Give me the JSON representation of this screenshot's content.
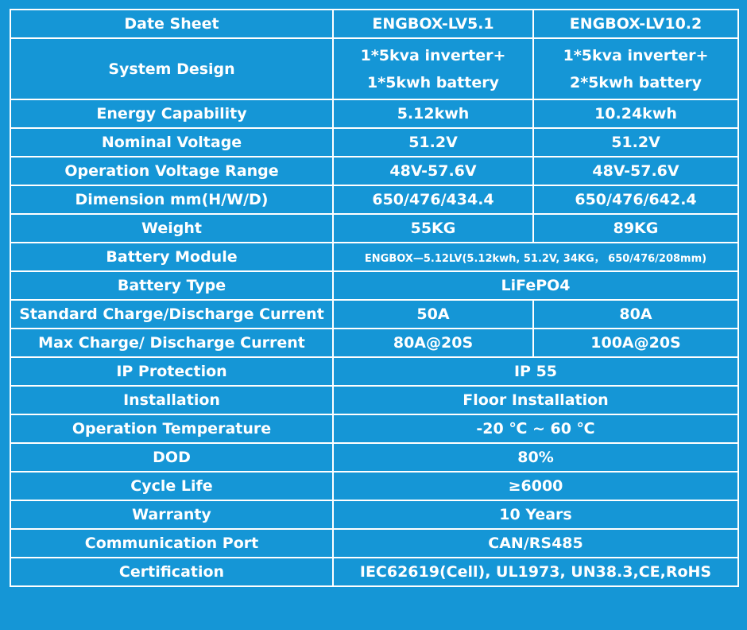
{
  "header": [
    "Date Sheet",
    "ENGBOX-LV5.1",
    "ENGBOX-LV10.2"
  ],
  "rows": [
    {
      "label": "System Design",
      "values": [
        [
          "1*5kva inverter+",
          "1*5kwh battery"
        ],
        [
          "1*5kva inverter+",
          "2*5kwh battery"
        ]
      ]
    },
    {
      "label": "Energy Capability",
      "values": [
        "5.12kwh",
        "10.24kwh"
      ]
    },
    {
      "label": "Nominal Voltage",
      "values": [
        "51.2V",
        "51.2V"
      ]
    },
    {
      "label": "Operation Voltage Range",
      "values": [
        "48V-57.6V",
        "48V-57.6V"
      ]
    },
    {
      "label": "Dimension mm(H/W/D)",
      "values": [
        "650/476/434.4",
        "650/476/642.4"
      ]
    },
    {
      "label": "Weight",
      "values": [
        "55KG",
        "89KG"
      ]
    },
    {
      "label": "Battery Module",
      "values": [
        "ENGBOX—5.12LV(5.12kwh, 51.2V, 34KG， 650/476/208mm)"
      ]
    },
    {
      "label": "Battery Type",
      "values": [
        "LiFePO4"
      ]
    },
    {
      "label": "Standard Charge/Discharge Current",
      "values": [
        "50A",
        "80A"
      ]
    },
    {
      "label": "Max Charge/ Discharge Current",
      "values": [
        "80A@20S",
        "100A@20S"
      ]
    },
    {
      "label": "IP Protection",
      "values": [
        "IP 55"
      ]
    },
    {
      "label": "Installation",
      "values": [
        "Floor Installation"
      ]
    },
    {
      "label": "Operation Temperature",
      "values": [
        "-20 ℃ ~ 60 ℃"
      ]
    },
    {
      "label": "DOD",
      "values": [
        "80%"
      ]
    },
    {
      "label": "Cycle Life",
      "values": [
        "≥6000"
      ]
    },
    {
      "label": "Warranty",
      "values": [
        "10 Years"
      ]
    },
    {
      "label": "Communication Port",
      "values": [
        "CAN/RS485"
      ]
    },
    {
      "label": "Certification",
      "values": [
        "IEC62619(Cell), UL1973, UN38.3,CE,RoHS"
      ]
    }
  ]
}
